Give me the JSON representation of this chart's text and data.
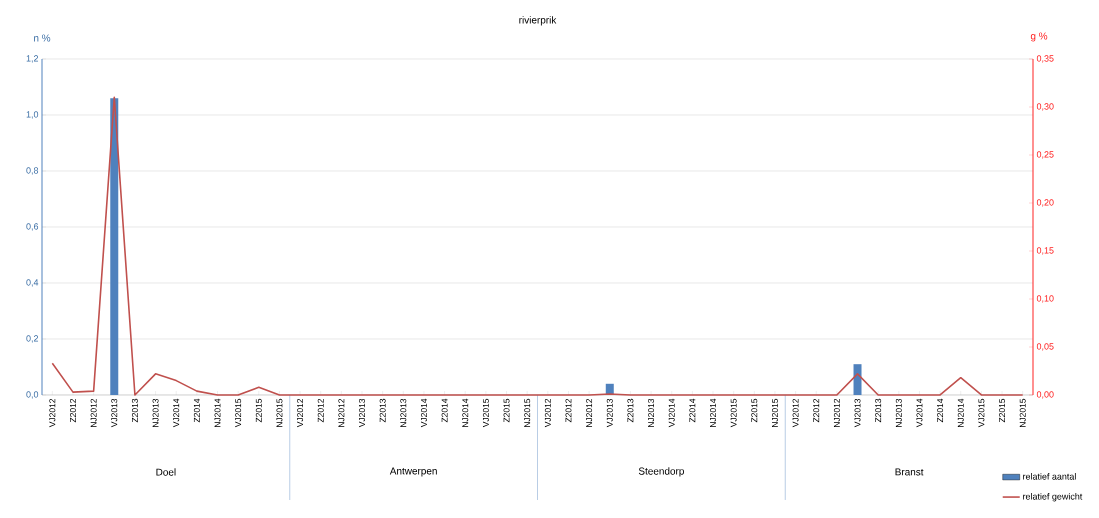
{
  "chart_data": {
    "type": "bar",
    "title": "rivierprik",
    "ylabel": "n %",
    "y2label": "g %",
    "categories": [
      "VJ2012",
      "Z2012",
      "NJ2012",
      "VJ2013",
      "Z2013",
      "NJ2013",
      "VJ2014",
      "Z2014",
      "NJ2014",
      "VJ2015",
      "Z2015",
      "NJ2015",
      "VJ2012",
      "Z2012",
      "NJ2012",
      "VJ2013",
      "Z2013",
      "NJ2013",
      "VJ2014",
      "Z2014",
      "NJ2014",
      "VJ2015",
      "Z2015",
      "NJ2015",
      "VJ2012",
      "Z2012",
      "NJ2012",
      "VJ2013",
      "Z2013",
      "NJ2013",
      "VJ2014",
      "Z2014",
      "NJ2014",
      "VJ2015",
      "Z2015",
      "NJ2015",
      "VJ2012",
      "Z2012",
      "NJ2012",
      "VJ2013",
      "Z2013",
      "NJ2013",
      "VJ2014",
      "Z2014",
      "NJ2014",
      "VJ2015",
      "Z2015",
      "NJ2015"
    ],
    "series": [
      {
        "name": "relatief aantal",
        "color": "#4f81bd",
        "values": [
          0,
          0,
          0,
          1.06,
          0,
          0,
          0,
          0,
          0,
          0,
          0,
          0,
          0,
          0,
          0,
          0,
          0,
          0,
          0,
          0,
          0,
          0,
          0,
          0,
          0,
          0,
          0,
          0.04,
          0,
          0,
          0,
          0,
          0,
          0,
          0,
          0,
          0,
          0,
          0,
          0.11,
          0,
          0,
          0,
          0,
          0,
          0,
          0,
          0
        ]
      },
      {
        "name": "relatief gewicht",
        "type": "line",
        "axis": "y2",
        "color": "#c0504d",
        "values": [
          0.033,
          0.003,
          0.004,
          0.31,
          0,
          0.022,
          0.015,
          0.004,
          0,
          0,
          0.008,
          0,
          0,
          0,
          0,
          0,
          0,
          0,
          0,
          0,
          0,
          0,
          0,
          0,
          0,
          0,
          0,
          0.001,
          0,
          0,
          0,
          0,
          0,
          0,
          0,
          0,
          0,
          0,
          0,
          0.022,
          0,
          0,
          0,
          0,
          0.018,
          0,
          0,
          0
        ]
      }
    ],
    "annotations": [
      "Doel",
      "Antwerpen",
      "Steendorp",
      "Branst"
    ],
    "ylim": [
      0,
      1.2
    ],
    "yticks": [
      {
        "value": 0,
        "label": "0,0"
      },
      {
        "value": 0.2,
        "label": "0,2"
      },
      {
        "value": 0.4,
        "label": "0,4"
      },
      {
        "value": 0.6,
        "label": "0,6"
      },
      {
        "value": 0.8,
        "label": "0,8"
      },
      {
        "value": 1.0,
        "label": "1,0"
      },
      {
        "value": 1.2,
        "label": "1,2"
      }
    ],
    "y2lim": [
      0,
      0.35
    ],
    "y2ticks": [
      {
        "value": 0,
        "label": "0,00"
      },
      {
        "value": 0.05,
        "label": "0,05"
      },
      {
        "value": 0.1,
        "label": "0,10"
      },
      {
        "value": 0.15,
        "label": "0,15"
      },
      {
        "value": 0.2,
        "label": "0,20"
      },
      {
        "value": 0.25,
        "label": "0,25"
      },
      {
        "value": 0.3,
        "label": "0,30"
      },
      {
        "value": 0.35,
        "label": "0,35"
      }
    ],
    "grid": "y",
    "legend": "bottom right",
    "marker": "none",
    "line_style": "solid"
  }
}
